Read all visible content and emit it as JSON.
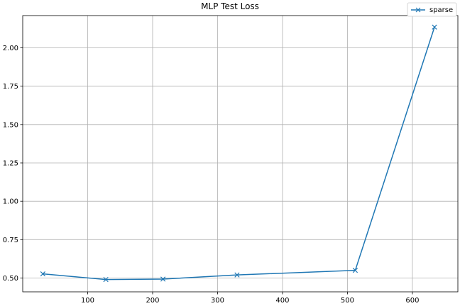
{
  "chart_data": {
    "type": "line",
    "title": "MLP Test Loss",
    "xlabel": "",
    "ylabel": "",
    "xlim": [
      0,
      670
    ],
    "ylim": [
      0.41,
      2.21
    ],
    "x_ticks": [
      100,
      200,
      300,
      400,
      500,
      600
    ],
    "y_ticks": [
      0.5,
      0.75,
      1.0,
      1.25,
      1.5,
      1.75,
      2.0
    ],
    "y_tick_labels": [
      "0.50",
      "0.75",
      "1.00",
      "1.25",
      "1.50",
      "1.75",
      "2.00"
    ],
    "grid": true,
    "legend_position": "top-right",
    "series": [
      {
        "name": "sparse",
        "color": "#1f77b4",
        "marker": "x",
        "x": [
          31,
          128,
          216,
          330,
          512,
          634
        ],
        "y": [
          0.527,
          0.49,
          0.493,
          0.52,
          0.55,
          2.135
        ]
      }
    ]
  }
}
